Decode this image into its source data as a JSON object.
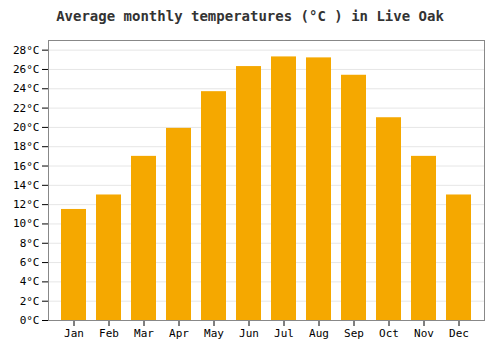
{
  "chart_data": {
    "type": "bar",
    "title": "Average monthly temperatures (°C ) in Live Oak",
    "categories": [
      "Jan",
      "Feb",
      "Mar",
      "Apr",
      "May",
      "Jun",
      "Jul",
      "Aug",
      "Sep",
      "Oct",
      "Nov",
      "Dec"
    ],
    "values": [
      11.5,
      13.0,
      17.0,
      19.9,
      23.7,
      26.3,
      27.3,
      27.2,
      25.4,
      21.0,
      17.0,
      13.0
    ],
    "color": "#F5A800",
    "ylim": [
      0,
      29
    ],
    "yticks": [
      {
        "value": 0,
        "label": "0°C"
      },
      {
        "value": 2,
        "label": "2°C"
      },
      {
        "value": 4,
        "label": "4°C"
      },
      {
        "value": 6,
        "label": "6°C"
      },
      {
        "value": 8,
        "label": "8°C"
      },
      {
        "value": 10,
        "label": "10°C"
      },
      {
        "value": 12,
        "label": "12°C"
      },
      {
        "value": 14,
        "label": "14°C"
      },
      {
        "value": 16,
        "label": "16°C"
      },
      {
        "value": 18,
        "label": "18°C"
      },
      {
        "value": 20,
        "label": "20°C"
      },
      {
        "value": 22,
        "label": "22°C"
      },
      {
        "value": 24,
        "label": "24°C"
      },
      {
        "value": 26,
        "label": "26°C"
      },
      {
        "value": 28,
        "label": "28°C"
      }
    ],
    "grid": true
  }
}
